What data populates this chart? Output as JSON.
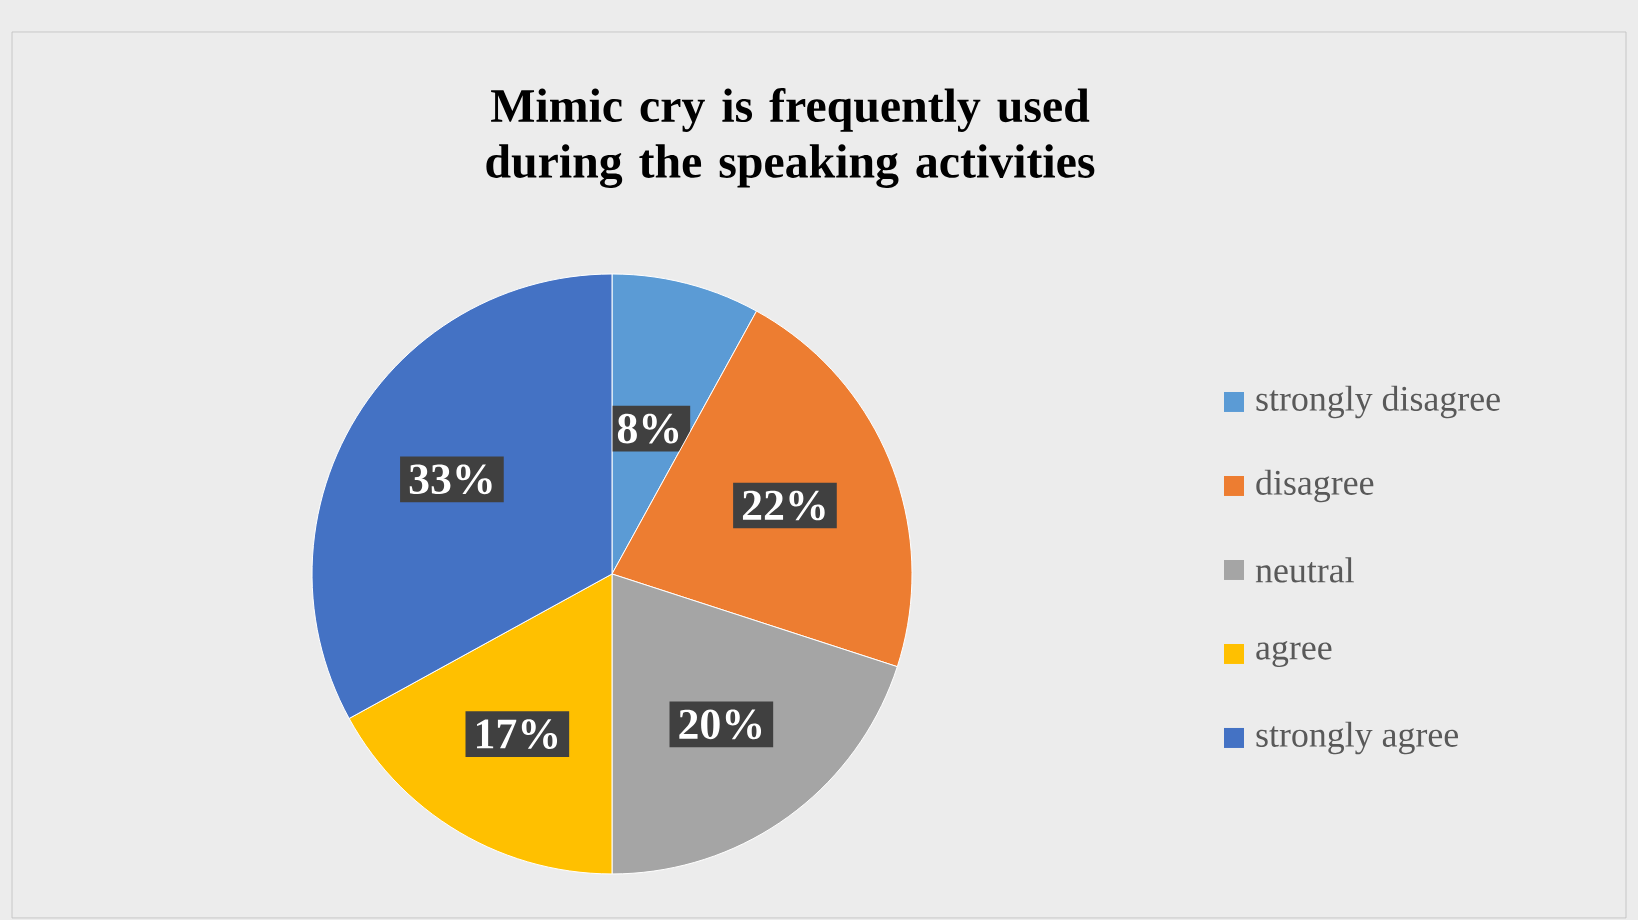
{
  "chart_data": {
    "type": "pie",
    "title": "Mimic cry is frequently used during the speaking activities",
    "categories": [
      "strongly disagree",
      "disagree",
      "neutral",
      "agree",
      "strongly agree"
    ],
    "values": [
      8,
      22,
      20,
      17,
      33
    ],
    "value_labels": [
      "8%",
      "22%",
      "20%",
      "17%",
      "33%"
    ],
    "colors": [
      "#5b9bd5",
      "#ed7d31",
      "#a5a5a5",
      "#ffc000",
      "#4472c4"
    ],
    "legend": "right"
  }
}
